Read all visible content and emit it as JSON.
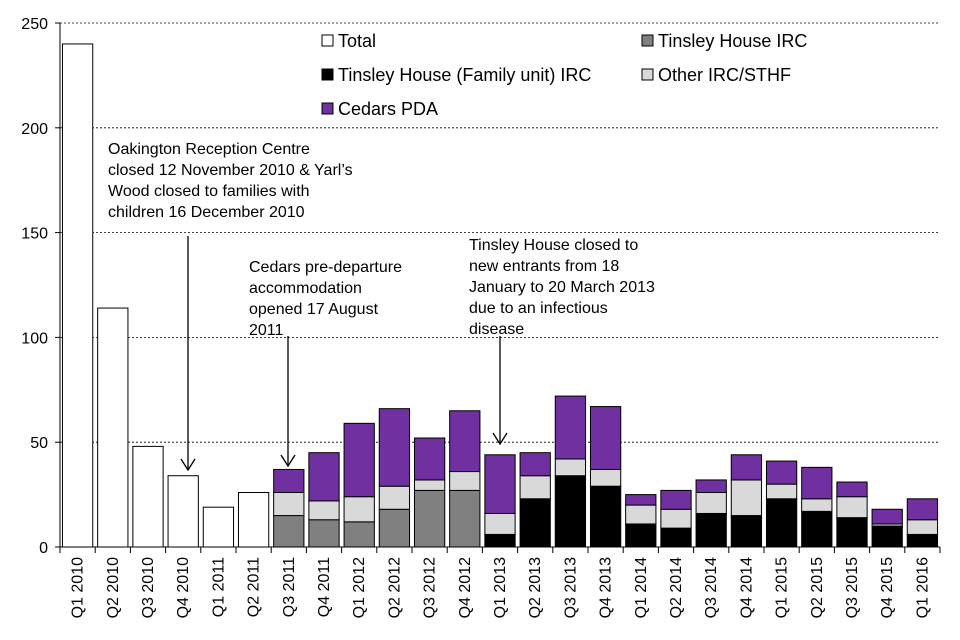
{
  "chart_data": {
    "type": "bar",
    "stacked": true,
    "title": "",
    "xlabel": "",
    "ylabel": "",
    "ylim": [
      0,
      250
    ],
    "yticks": [
      0,
      50,
      100,
      150,
      200,
      250
    ],
    "grid": "horizontal dashed",
    "legend_position": "top-center",
    "categories": [
      "Q1 2010",
      "Q2 2010",
      "Q3 2010",
      "Q4 2010",
      "Q1 2011",
      "Q2 2011",
      "Q3 2011",
      "Q4 2011",
      "Q1 2012",
      "Q2 2012",
      "Q3 2012",
      "Q4 2012",
      "Q1 2013",
      "Q2 2013",
      "Q3 2013",
      "Q4 2013",
      "Q1 2014",
      "Q2 2014",
      "Q3 2014",
      "Q4 2014",
      "Q1 2015",
      "Q2 2015",
      "Q3 2015",
      "Q4 2015",
      "Q1 2016"
    ],
    "series": [
      {
        "name": "Total",
        "color": "#ffffff",
        "values": [
          240,
          114,
          48,
          34,
          19,
          26,
          0,
          0,
          0,
          0,
          0,
          0,
          0,
          0,
          0,
          0,
          0,
          0,
          0,
          0,
          0,
          0,
          0,
          0,
          0
        ]
      },
      {
        "name": "Tinsley House IRC",
        "color": "#808080",
        "values": [
          0,
          0,
          0,
          0,
          0,
          0,
          15,
          13,
          12,
          18,
          27,
          27,
          0,
          0,
          0,
          0,
          0,
          0,
          0,
          0,
          0,
          0,
          0,
          0,
          0
        ]
      },
      {
        "name": "Tinsley House (Family unit) IRC",
        "color": "#000000",
        "values": [
          0,
          0,
          0,
          0,
          0,
          0,
          0,
          0,
          0,
          0,
          0,
          0,
          6,
          23,
          34,
          29,
          11,
          9,
          16,
          15,
          23,
          17,
          14,
          10,
          6
        ]
      },
      {
        "name": "Other IRC/STHF",
        "color": "#d9d9d9",
        "values": [
          0,
          0,
          0,
          0,
          0,
          0,
          11,
          9,
          12,
          11,
          5,
          9,
          10,
          11,
          8,
          8,
          9,
          9,
          10,
          17,
          7,
          6,
          10,
          1,
          7
        ]
      },
      {
        "name": "Cedars PDA",
        "color": "#7030a0",
        "values": [
          0,
          0,
          0,
          0,
          0,
          0,
          11,
          23,
          35,
          37,
          20,
          29,
          28,
          11,
          30,
          30,
          5,
          9,
          6,
          12,
          11,
          15,
          7,
          7,
          10
        ]
      }
    ],
    "legend_items": [
      "Total",
      "Tinsley House IRC",
      "Tinsley House (Family unit) IRC",
      "Other IRC/STHF",
      "Cedars PDA"
    ],
    "annotations": [
      {
        "target": "Q4 2010",
        "lines": [
          "Oakington Reception Centre",
          "closed 12 November 2010 & Yarl’s",
          "Wood closed to families with",
          "children 16 December 2010"
        ]
      },
      {
        "target": "Q3 2011",
        "lines": [
          "Cedars pre-departure",
          "accommodation",
          "opened 17 August",
          "2011"
        ]
      },
      {
        "target": "Q1 2013",
        "lines": [
          "Tinsley House closed to",
          "new entrants from 18",
          "January to 20 March 2013",
          "due to an infectious",
          "disease"
        ]
      }
    ]
  }
}
